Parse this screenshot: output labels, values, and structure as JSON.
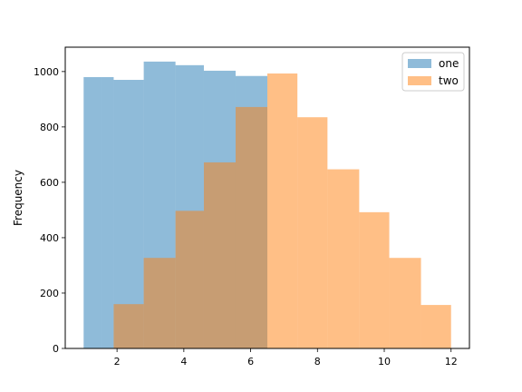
{
  "chart_data": {
    "type": "bar",
    "title": "",
    "xlabel": "",
    "ylabel": "Frequency",
    "xlim": [
      0.45,
      12.55
    ],
    "ylim": [
      0,
      1088
    ],
    "xticks": [
      2,
      4,
      6,
      8,
      10,
      12
    ],
    "yticks": [
      0,
      200,
      400,
      600,
      800,
      1000
    ],
    "grid": false,
    "legend_position": "top-right",
    "series": [
      {
        "name": "one",
        "color": "#1f77b4",
        "opacity": 0.5,
        "bin_edges": [
          1.0,
          1.55,
          1.9,
          2.8,
          3.75,
          4.6,
          5.55,
          6.5
        ],
        "values": [
          980,
          980,
          970,
          1036,
          1023,
          1003,
          984
        ]
      },
      {
        "name": "two",
        "color": "#ff7f0e",
        "opacity": 0.5,
        "bin_edges": [
          1.9,
          2.8,
          3.75,
          4.6,
          5.55,
          6.5,
          7.4,
          8.3,
          9.25,
          10.15,
          11.1,
          12.0
        ],
        "values": [
          160,
          327,
          497,
          672,
          872,
          993,
          835,
          647,
          492,
          327,
          157
        ]
      }
    ]
  }
}
